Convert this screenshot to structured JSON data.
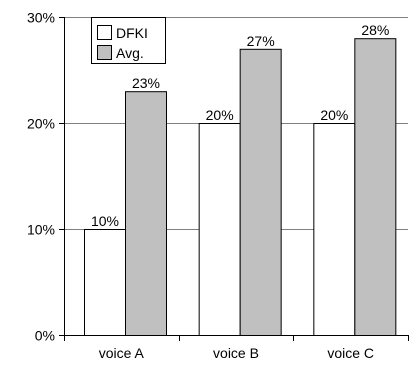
{
  "chart_data": {
    "type": "bar",
    "categories": [
      "voice A",
      "voice B",
      "voice C"
    ],
    "series": [
      {
        "name": "DFKI",
        "values": [
          10,
          20,
          20
        ],
        "labels": [
          "10%",
          "20%",
          "20%"
        ],
        "color": "#ffffff"
      },
      {
        "name": "Avg.",
        "values": [
          23,
          27,
          28
        ],
        "labels": [
          "23%",
          "27%",
          "28%"
        ],
        "color": "#c0c0c0"
      }
    ],
    "yticks": [
      0,
      10,
      20,
      30
    ],
    "ytick_labels": [
      "0%",
      "10%",
      "20%",
      "30%"
    ],
    "ylim": [
      0,
      30
    ],
    "grid": true,
    "legend_position": "top-left"
  }
}
